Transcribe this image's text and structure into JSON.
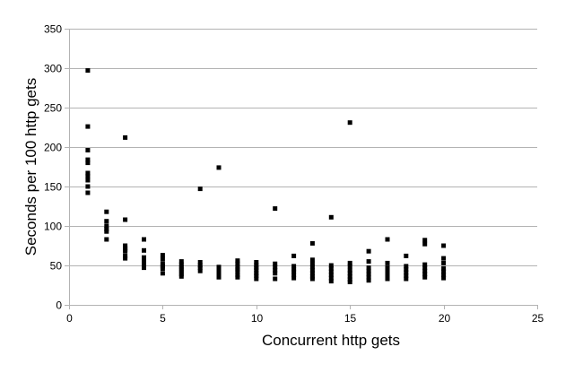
{
  "chart_data": {
    "type": "scatter",
    "title": "",
    "xlabel": "Concurrent http gets",
    "ylabel": "Seconds per 100 http gets",
    "xlim": [
      0,
      25
    ],
    "ylim": [
      0,
      350
    ],
    "x_ticks": [
      0,
      5,
      10,
      15,
      20,
      25
    ],
    "y_ticks": [
      0,
      50,
      100,
      150,
      200,
      250,
      300,
      350
    ],
    "grid": "horizontal",
    "legend": "none",
    "marker_color": "#000000",
    "grid_color": "#b3b3b3",
    "series": [
      {
        "points": [
          [
            1,
            297
          ],
          [
            1,
            226
          ],
          [
            1,
            196
          ],
          [
            1,
            184
          ],
          [
            1,
            180
          ],
          [
            1,
            167
          ],
          [
            1,
            163
          ],
          [
            1,
            158
          ],
          [
            1,
            150
          ],
          [
            1,
            142
          ],
          [
            2,
            118
          ],
          [
            2,
            106
          ],
          [
            2,
            100
          ],
          [
            2,
            96
          ],
          [
            2,
            93
          ],
          [
            2,
            83
          ],
          [
            3,
            212
          ],
          [
            3,
            108
          ],
          [
            3,
            75
          ],
          [
            3,
            72
          ],
          [
            3,
            70
          ],
          [
            3,
            68
          ],
          [
            3,
            62
          ],
          [
            3,
            59
          ],
          [
            4,
            83
          ],
          [
            4,
            69
          ],
          [
            4,
            60
          ],
          [
            4,
            57
          ],
          [
            4,
            54
          ],
          [
            4,
            52
          ],
          [
            4,
            47
          ],
          [
            5,
            63
          ],
          [
            5,
            58
          ],
          [
            5,
            52
          ],
          [
            5,
            49
          ],
          [
            5,
            46
          ],
          [
            5,
            40
          ],
          [
            6,
            55
          ],
          [
            6,
            51
          ],
          [
            6,
            48
          ],
          [
            6,
            45
          ],
          [
            6,
            42
          ],
          [
            6,
            39
          ],
          [
            6,
            36
          ],
          [
            7,
            147
          ],
          [
            7,
            54
          ],
          [
            7,
            50
          ],
          [
            7,
            47
          ],
          [
            7,
            43
          ],
          [
            8,
            174
          ],
          [
            8,
            48
          ],
          [
            8,
            45
          ],
          [
            8,
            42
          ],
          [
            8,
            38
          ],
          [
            8,
            35
          ],
          [
            9,
            56
          ],
          [
            9,
            52
          ],
          [
            9,
            48
          ],
          [
            9,
            45
          ],
          [
            9,
            42
          ],
          [
            9,
            38
          ],
          [
            9,
            35
          ],
          [
            10,
            54
          ],
          [
            10,
            50
          ],
          [
            10,
            47
          ],
          [
            10,
            44
          ],
          [
            10,
            40
          ],
          [
            10,
            37
          ],
          [
            10,
            33
          ],
          [
            11,
            122
          ],
          [
            11,
            52
          ],
          [
            11,
            48
          ],
          [
            11,
            44
          ],
          [
            11,
            40
          ],
          [
            11,
            33
          ],
          [
            12,
            62
          ],
          [
            12,
            49
          ],
          [
            12,
            45
          ],
          [
            12,
            42
          ],
          [
            12,
            38
          ],
          [
            12,
            34
          ],
          [
            13,
            78
          ],
          [
            13,
            57
          ],
          [
            13,
            52
          ],
          [
            13,
            48
          ],
          [
            13,
            44
          ],
          [
            13,
            40
          ],
          [
            13,
            36
          ],
          [
            13,
            33
          ],
          [
            14,
            111
          ],
          [
            14,
            50
          ],
          [
            14,
            46
          ],
          [
            14,
            42
          ],
          [
            14,
            38
          ],
          [
            14,
            34
          ],
          [
            14,
            30
          ],
          [
            15,
            231
          ],
          [
            15,
            53
          ],
          [
            15,
            49
          ],
          [
            15,
            44
          ],
          [
            15,
            40
          ],
          [
            15,
            36
          ],
          [
            15,
            32
          ],
          [
            15,
            29
          ],
          [
            16,
            68
          ],
          [
            16,
            55
          ],
          [
            16,
            47
          ],
          [
            16,
            43
          ],
          [
            16,
            39
          ],
          [
            16,
            35
          ],
          [
            16,
            31
          ],
          [
            17,
            83
          ],
          [
            17,
            53
          ],
          [
            17,
            47
          ],
          [
            17,
            43
          ],
          [
            17,
            38
          ],
          [
            17,
            33
          ],
          [
            18,
            62
          ],
          [
            18,
            49
          ],
          [
            18,
            45
          ],
          [
            18,
            41
          ],
          [
            18,
            37
          ],
          [
            18,
            33
          ],
          [
            19,
            82
          ],
          [
            19,
            77
          ],
          [
            19,
            51
          ],
          [
            19,
            47
          ],
          [
            19,
            43
          ],
          [
            19,
            39
          ],
          [
            19,
            35
          ],
          [
            20,
            75
          ],
          [
            20,
            59
          ],
          [
            20,
            53
          ],
          [
            20,
            46
          ],
          [
            20,
            42
          ],
          [
            20,
            38
          ],
          [
            20,
            34
          ]
        ]
      }
    ]
  }
}
